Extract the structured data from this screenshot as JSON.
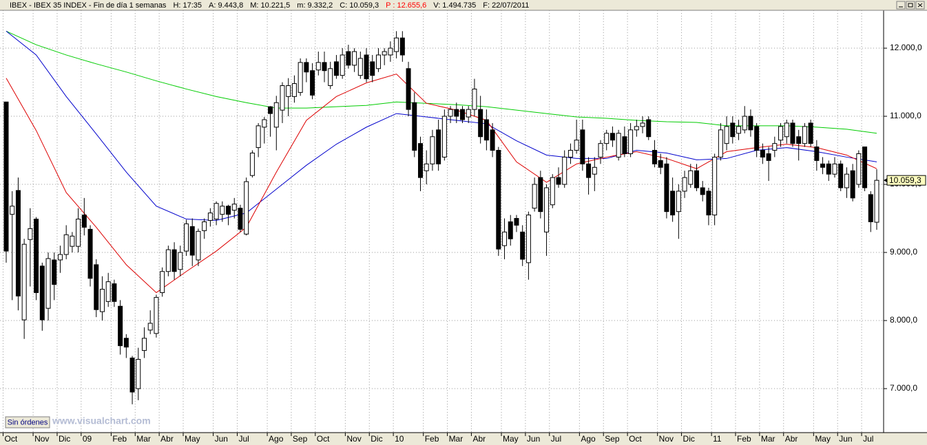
{
  "chart_data": {
    "type": "candlestick",
    "header": [
      {
        "text": "IBEX - IBEX 35 INDEX - Fin de día 1 semanas",
        "color": "#000000"
      },
      {
        "text": "H: 17:35",
        "color": "#000000"
      },
      {
        "text": "A: 9.443,8",
        "color": "#000000"
      },
      {
        "text": "M: 10.221,5",
        "color": "#000000"
      },
      {
        "text": "m: 9.332,2",
        "color": "#000000"
      },
      {
        "text": "C: 10.059,3",
        "color": "#000000"
      },
      {
        "text": "P : 12.655,6",
        "color": "#ff0000"
      },
      {
        "text": "V: 1.494.735",
        "color": "#000000"
      },
      {
        "text": "F: 22/07/2011",
        "color": "#000000"
      }
    ],
    "button": "Sin órdenes",
    "watermark": "www.visualchart.com",
    "categories": [
      "Oct",
      null,
      null,
      null,
      null,
      "Nov",
      null,
      null,
      null,
      "Dic",
      null,
      null,
      null,
      "09",
      null,
      null,
      null,
      null,
      "Feb",
      null,
      null,
      null,
      "Mar",
      null,
      null,
      null,
      "Abr",
      null,
      null,
      null,
      "May",
      null,
      null,
      null,
      null,
      "Jun",
      null,
      null,
      null,
      "Jul",
      null,
      null,
      null,
      null,
      "Ago",
      null,
      null,
      null,
      "Sep",
      null,
      null,
      null,
      "Oct",
      null,
      null,
      null,
      null,
      "Nov",
      null,
      null,
      null,
      "Dic",
      null,
      null,
      null,
      "10",
      null,
      null,
      null,
      null,
      "Feb",
      null,
      null,
      null,
      "Mar",
      null,
      null,
      null,
      "Abr",
      null,
      null,
      null,
      null,
      "May",
      null,
      null,
      null,
      "Jun",
      null,
      null,
      null,
      "Jul",
      null,
      null,
      null,
      null,
      "Ago",
      null,
      null,
      null,
      "Sep",
      null,
      null,
      null,
      "Oct",
      null,
      null,
      null,
      null,
      "Nov",
      null,
      null,
      null,
      "Dic",
      null,
      null,
      null,
      null,
      "11",
      null,
      null,
      null,
      "Feb",
      null,
      null,
      null,
      "Mar",
      null,
      null,
      null,
      "Abr",
      null,
      null,
      null,
      null,
      "May",
      null,
      null,
      null,
      "Jun",
      null,
      null,
      null,
      "Jul",
      null,
      null
    ],
    "open": [
      11210,
      9560,
      9910,
      8010,
      9190,
      9490,
      8800,
      8180,
      8890,
      8890,
      8970,
      9090,
      9090,
      9550,
      9340,
      8820,
      8130,
      8280,
      8540,
      8210,
      7740,
      7450,
      7000,
      7560,
      7860,
      7810,
      8410,
      8720,
      9040,
      8750,
      9020,
      9380,
      8890,
      9320,
      9470,
      9490,
      9560,
      9680,
      9620,
      9650,
      9270,
      10130,
      10540,
      10840,
      11140,
      10840,
      11090,
      11290,
      11290,
      11350,
      11790,
      11670,
      11680,
      11790,
      11450,
      11800,
      11600,
      11950,
      11750,
      11600,
      11900,
      11800,
      11700,
      11900,
      11900,
      11950,
      12150,
      11700,
      11200,
      10600,
      10200,
      10300,
      10800,
      10400,
      11000,
      11100,
      11100,
      10990,
      11100,
      11100,
      10950,
      10800,
      10500,
      9100,
      9450,
      9500,
      9300,
      8850,
      9650,
      10100,
      9300,
      9700,
      10100,
      10000,
      10400,
      10500,
      10800,
      10300,
      10150,
      10400,
      10600,
      10750,
      10400,
      10700,
      10450,
      10800,
      10850,
      10950,
      10500,
      10350,
      10300,
      9900,
      9600,
      9900,
      10000,
      10200,
      9950,
      9900,
      9550,
      10400,
      10600,
      10900,
      10750,
      10800,
      11000,
      10850,
      10500,
      10450,
      10500,
      10650,
      10700,
      10900,
      10700,
      10600,
      10900,
      10550,
      10300,
      10300,
      10150,
      10300,
      9950,
      10200,
      10000,
      10550,
      9850,
      9443.8
    ],
    "high": [
      11210,
      9900,
      10100,
      9200,
      9650,
      9520,
      8850,
      9000,
      9000,
      9100,
      9400,
      9300,
      9650,
      9800,
      9400,
      8900,
      8650,
      8700,
      8600,
      8300,
      7800,
      7480,
      7600,
      7900,
      8150,
      8380,
      8780,
      9100,
      9150,
      9100,
      9480,
      9500,
      9350,
      9500,
      9650,
      9750,
      9750,
      9700,
      9800,
      9700,
      10100,
      10500,
      10900,
      10990,
      11150,
      11300,
      11500,
      11560,
      11600,
      11850,
      11850,
      11780,
      11950,
      11950,
      11800,
      11900,
      12000,
      12050,
      12000,
      11950,
      12000,
      11900,
      12000,
      12000,
      12100,
      12250,
      12250,
      11800,
      11350,
      10700,
      10500,
      10800,
      10950,
      11100,
      11150,
      11200,
      11150,
      11150,
      11550,
      11300,
      11100,
      10900,
      10550,
      9500,
      9550,
      9550,
      9400,
      9600,
      10100,
      10200,
      10000,
      10150,
      10250,
      10500,
      10600,
      10950,
      10950,
      10400,
      10400,
      10650,
      10800,
      10850,
      10800,
      10850,
      10900,
      10950,
      11000,
      11000,
      10650,
      10450,
      10400,
      10100,
      10000,
      10200,
      10300,
      10300,
      10050,
      9950,
      10450,
      10900,
      11000,
      11000,
      10950,
      11150,
      11100,
      10900,
      10600,
      10550,
      10700,
      10900,
      10950,
      10950,
      10800,
      10900,
      10950,
      10650,
      10400,
      10350,
      10400,
      10350,
      10250,
      10300,
      10500,
      10550,
      9900,
      10221.5
    ],
    "low": [
      8850,
      8300,
      8150,
      7730,
      8500,
      8300,
      7850,
      8000,
      8300,
      8700,
      8900,
      9000,
      9000,
      9250,
      8500,
      8050,
      8000,
      8200,
      8200,
      7500,
      7450,
      6770,
      6830,
      7450,
      7800,
      7750,
      8350,
      8650,
      8600,
      8650,
      8950,
      8800,
      8800,
      9200,
      9380,
      9400,
      9450,
      9400,
      9500,
      9300,
      9250,
      10100,
      10400,
      10600,
      10700,
      10500,
      10900,
      11000,
      11200,
      11300,
      11500,
      11250,
      11600,
      11500,
      11400,
      11550,
      11550,
      11700,
      11650,
      11550,
      11500,
      11500,
      11650,
      11750,
      11800,
      11850,
      11800,
      11000,
      10400,
      9900,
      10000,
      10200,
      10200,
      10350,
      10900,
      10900,
      10900,
      10900,
      11000,
      10600,
      10500,
      10400,
      8950,
      8900,
      9100,
      9300,
      8800,
      8600,
      9600,
      9500,
      8950,
      9650,
      9950,
      9950,
      10300,
      10450,
      10200,
      9850,
      9900,
      10300,
      10500,
      10550,
      10350,
      10400,
      10400,
      10700,
      10750,
      10650,
      10250,
      10150,
      9500,
      9450,
      9200,
      9800,
      9950,
      9900,
      9750,
      9400,
      9400,
      10350,
      10500,
      10600,
      10650,
      10750,
      10700,
      10400,
      10300,
      10050,
      10400,
      10550,
      10600,
      10550,
      10350,
      10550,
      10550,
      10200,
      10150,
      10050,
      10100,
      9900,
      9800,
      9750,
      9950,
      9900,
      9300,
      9332.2
    ],
    "close": [
      9020,
      9680,
      8360,
      9120,
      9350,
      8410,
      8010,
      8910,
      8530,
      8970,
      9260,
      9240,
      9490,
      9370,
      8620,
      8160,
      8460,
      8570,
      8280,
      7630,
      7610,
      6950,
      7430,
      7740,
      7960,
      8340,
      8720,
      9040,
      8720,
      9000,
      9420,
      8960,
      9310,
      9450,
      9580,
      9720,
      9680,
      9560,
      9710,
      9340,
      10040,
      10460,
      10860,
      10950,
      11040,
      11200,
      11450,
      11450,
      11480,
      11790,
      11650,
      11310,
      11790,
      11670,
      11700,
      11600,
      11900,
      11750,
      11950,
      11850,
      11550,
      11600,
      11900,
      11950,
      12000,
      12150,
      11900,
      11100,
      10500,
      10100,
      10300,
      10700,
      10300,
      11000,
      11100,
      11000,
      10950,
      11100,
      11400,
      10700,
      10650,
      10500,
      9050,
      9300,
      9200,
      9400,
      8900,
      9550,
      10000,
      9600,
      9950,
      10100,
      10000,
      10400,
      10500,
      10650,
      10300,
      10100,
      10250,
      10600,
      10750,
      10650,
      10750,
      10450,
      10800,
      10850,
      10900,
      10700,
      10300,
      10250,
      9600,
      9550,
      9900,
      10100,
      10200,
      9950,
      9850,
      9550,
      10400,
      10800,
      10850,
      10700,
      10850,
      11000,
      10800,
      10500,
      10400,
      10350,
      10600,
      10850,
      10900,
      10600,
      10600,
      10850,
      10600,
      10350,
      10250,
      10150,
      10300,
      9950,
      10150,
      9800,
      10450,
      9950,
      9450,
      10059.3
    ],
    "up_color": "#ffffff",
    "down_color": "#000000",
    "lines": [
      {
        "color": "#00cc00",
        "x": [
          0,
          5,
          10,
          15,
          20,
          25,
          30,
          35,
          40,
          45,
          50,
          55,
          60,
          65,
          70,
          75,
          80,
          85,
          90,
          95,
          100,
          105,
          110,
          115,
          120,
          125,
          130,
          135,
          140,
          145
        ],
        "values": [
          12250,
          12050,
          11900,
          11770,
          11650,
          11520,
          11400,
          11290,
          11200,
          11120,
          11120,
          11140,
          11160,
          11210,
          11190,
          11170,
          11140,
          11090,
          11040,
          10990,
          10970,
          10940,
          10920,
          10910,
          10860,
          10860,
          10860,
          10840,
          10810,
          10750
        ]
      },
      {
        "color": "#0000cc",
        "x": [
          0,
          5,
          10,
          15,
          20,
          25,
          30,
          35,
          40,
          45,
          50,
          55,
          60,
          65,
          70,
          75,
          80,
          85,
          90,
          95,
          100,
          105,
          110,
          115,
          120,
          125,
          130,
          135,
          140,
          145
        ],
        "values": [
          12250,
          11900,
          11290,
          10740,
          10180,
          9680,
          9490,
          9470,
          9580,
          9930,
          10280,
          10590,
          10840,
          11040,
          10990,
          10940,
          10890,
          10640,
          10430,
          10380,
          10380,
          10500,
          10460,
          10360,
          10380,
          10500,
          10540,
          10480,
          10400,
          10330
        ]
      },
      {
        "color": "#dd0000",
        "x": [
          0,
          5,
          10,
          15,
          20,
          25,
          30,
          35,
          40,
          45,
          50,
          55,
          60,
          65,
          70,
          75,
          80,
          85,
          90,
          95,
          100,
          105,
          110,
          115,
          120,
          125,
          130,
          135,
          140,
          145
        ],
        "values": [
          11560,
          10790,
          9880,
          9370,
          8820,
          8410,
          8720,
          9020,
          9370,
          10180,
          10940,
          11290,
          11490,
          11620,
          11190,
          11090,
          10940,
          10330,
          10030,
          10300,
          10400,
          10480,
          10380,
          10230,
          10480,
          10540,
          10590,
          10540,
          10430,
          10230
        ]
      }
    ],
    "ylim": [
      6364,
      12556
    ],
    "yticks": [
      {
        "value": 7000,
        "label": "7.000,0"
      },
      {
        "value": 8000,
        "label": "8.000,0"
      },
      {
        "value": 9000,
        "label": "9.000,0"
      },
      {
        "value": 10000,
        "label": "10.000,0"
      },
      {
        "value": 11000,
        "label": "11.000,0"
      },
      {
        "value": 12000,
        "label": "12.000,0"
      }
    ],
    "last": {
      "value": 10059.3,
      "label": "10.059,3"
    },
    "grid": true
  }
}
